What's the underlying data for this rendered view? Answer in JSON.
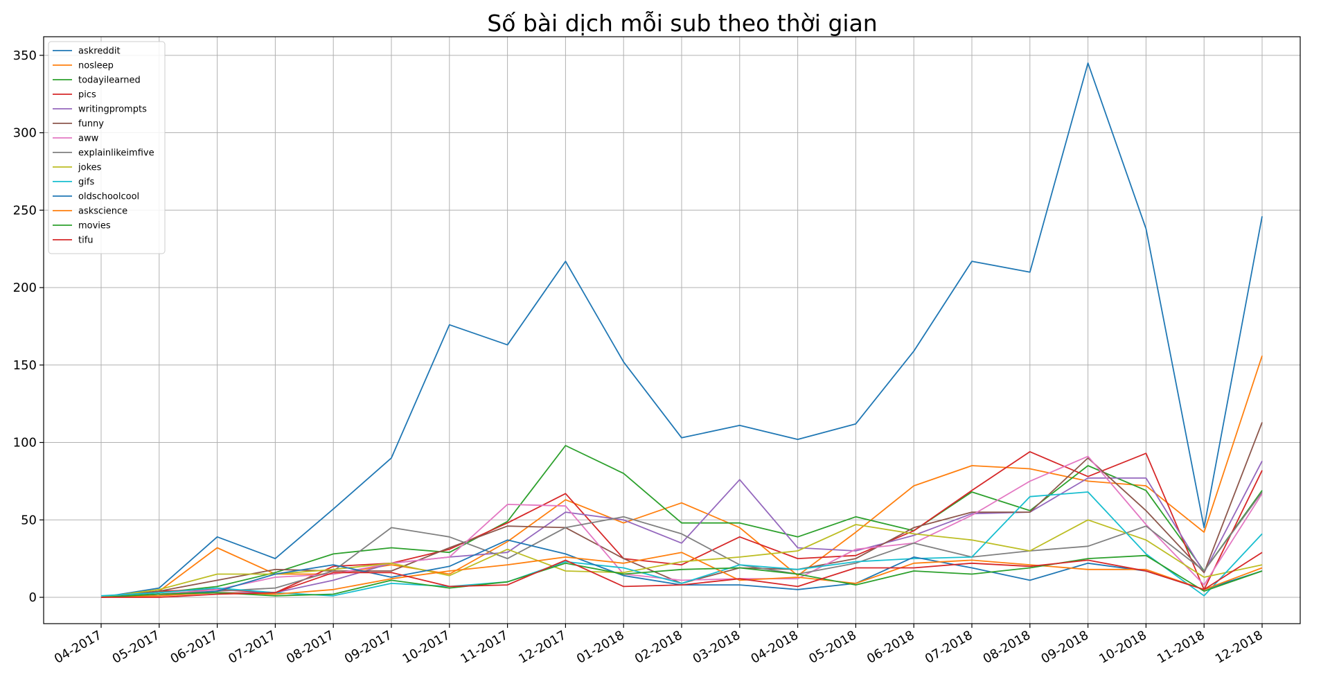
{
  "chart_data": {
    "type": "line",
    "title": "Số bài dịch mỗi sub theo thời gian",
    "xlabel": "",
    "ylabel": "",
    "x": [
      "04-2017",
      "05-2017",
      "06-2017",
      "07-2017",
      "08-2017",
      "09-2017",
      "10-2017",
      "11-2017",
      "12-2017",
      "01-2018",
      "02-2018",
      "03-2018",
      "04-2018",
      "05-2018",
      "06-2018",
      "07-2018",
      "08-2018",
      "09-2018",
      "10-2018",
      "11-2018",
      "12-2018"
    ],
    "ylim": [
      -17,
      362
    ],
    "yticks": [
      0,
      50,
      100,
      150,
      200,
      250,
      300,
      350
    ],
    "grid": true,
    "legend_position": "top-left",
    "series": [
      {
        "name": "askreddit",
        "color": "#1f77b4",
        "values": [
          0,
          6,
          39,
          25,
          57,
          90,
          176,
          163,
          217,
          152,
          103,
          111,
          102,
          112,
          159,
          217,
          210,
          345,
          238,
          45,
          246
        ]
      },
      {
        "name": "nosleep",
        "color": "#ff7f0e",
        "values": [
          0,
          4,
          32,
          15,
          15,
          21,
          15,
          36,
          63,
          48,
          61,
          45,
          14,
          42,
          72,
          85,
          83,
          75,
          72,
          42,
          156
        ]
      },
      {
        "name": "todayilearned",
        "color": "#2ca02c",
        "values": [
          0,
          3,
          7,
          16,
          28,
          32,
          29,
          49,
          98,
          80,
          48,
          48,
          39,
          52,
          43,
          68,
          56,
          85,
          69,
          17,
          69
        ]
      },
      {
        "name": "pics",
        "color": "#d62728",
        "values": [
          0,
          4,
          5,
          3,
          20,
          22,
          31,
          48,
          67,
          25,
          21,
          39,
          25,
          27,
          43,
          69,
          94,
          78,
          93,
          5,
          82
        ]
      },
      {
        "name": "writingprompts",
        "color": "#9467bd",
        "values": [
          0,
          2,
          3,
          3,
          11,
          22,
          26,
          29,
          55,
          50,
          35,
          76,
          32,
          30,
          40,
          54,
          55,
          77,
          77,
          16,
          88
        ]
      },
      {
        "name": "funny",
        "color": "#8c564b",
        "values": [
          0,
          4,
          11,
          18,
          17,
          17,
          32,
          46,
          45,
          25,
          9,
          19,
          18,
          25,
          45,
          55,
          55,
          90,
          56,
          16,
          113
        ]
      },
      {
        "name": "aww",
        "color": "#e377c2",
        "values": [
          0,
          2,
          5,
          13,
          15,
          22,
          26,
          60,
          59,
          15,
          11,
          12,
          12,
          31,
          35,
          53,
          75,
          91,
          47,
          8,
          67
        ]
      },
      {
        "name": "explainlikeimfive",
        "color": "#7f7f7f",
        "values": [
          0,
          2,
          4,
          6,
          17,
          45,
          39,
          25,
          45,
          52,
          41,
          21,
          15,
          22,
          35,
          26,
          30,
          33,
          46,
          17,
          68
        ]
      },
      {
        "name": "jokes",
        "color": "#bcbd22",
        "values": [
          0,
          5,
          15,
          15,
          18,
          22,
          14,
          31,
          17,
          16,
          23,
          26,
          30,
          47,
          41,
          37,
          30,
          50,
          37,
          13,
          21
        ]
      },
      {
        "name": "gifs",
        "color": "#17becf",
        "values": [
          1,
          3,
          6,
          3,
          1,
          9,
          7,
          10,
          23,
          19,
          9,
          21,
          18,
          23,
          25,
          26,
          65,
          68,
          28,
          1,
          41
        ]
      },
      {
        "name": "oldschoolcool",
        "color": "#1f77b4",
        "values": [
          0,
          1,
          4,
          15,
          21,
          13,
          20,
          37,
          28,
          14,
          8,
          8,
          5,
          9,
          26,
          19,
          11,
          22,
          17,
          5,
          17
        ]
      },
      {
        "name": "askscience",
        "color": "#ff7f0e",
        "values": [
          0,
          1,
          3,
          2,
          5,
          12,
          17,
          21,
          26,
          22,
          29,
          11,
          13,
          9,
          22,
          24,
          21,
          18,
          18,
          5,
          19
        ]
      },
      {
        "name": "movies",
        "color": "#2ca02c",
        "values": [
          0,
          2,
          3,
          1,
          2,
          11,
          6,
          10,
          22,
          15,
          18,
          19,
          15,
          8,
          17,
          15,
          19,
          25,
          27,
          4,
          17
        ]
      },
      {
        "name": "tifu",
        "color": "#d62728",
        "values": [
          0,
          0,
          2,
          3,
          16,
          16,
          7,
          8,
          24,
          7,
          8,
          12,
          7,
          19,
          19,
          22,
          20,
          24,
          17,
          5,
          29
        ]
      }
    ]
  }
}
